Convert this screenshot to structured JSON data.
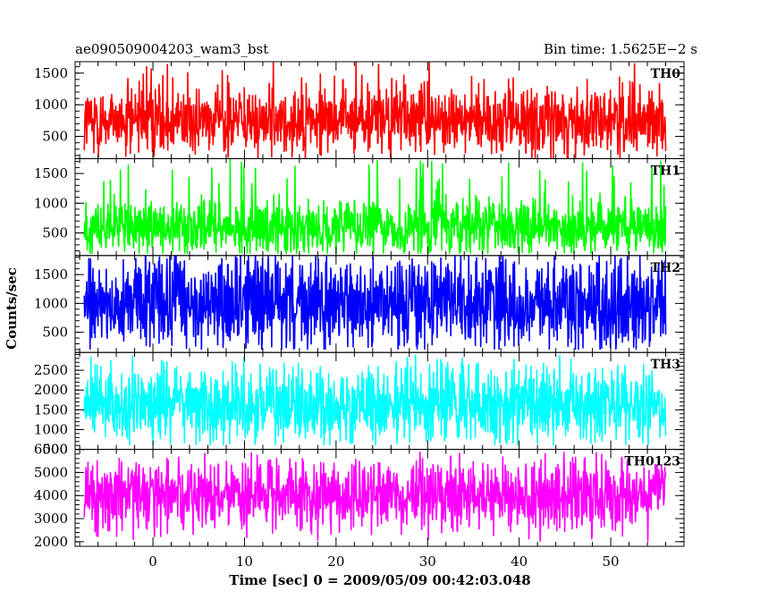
{
  "header": {
    "object_name": "ae090509004203_wam3_bst",
    "bin_time": "Bin time: 1.5625E−2 s"
  },
  "chart_data": {
    "type": "line",
    "xlabel": "Time [sec] 0 = 2009/05/09 00:42:03.048",
    "ylabel": "Counts/sec",
    "xlim": [
      -8.5,
      58
    ],
    "x_data_range": [
      -7.5,
      56
    ],
    "bin_time_s": 0.015625,
    "x_ticks": [
      0,
      10,
      20,
      30,
      40,
      50
    ],
    "grid": false,
    "legend": "none",
    "panels": [
      {
        "name": "TH0",
        "color": "#ff0000",
        "ylim": [
          150,
          1680
        ],
        "yticks": [
          500,
          1000,
          1500
        ],
        "baseline": 760,
        "spread": 260,
        "min": 150,
        "max": 1680
      },
      {
        "name": "TH1",
        "color": "#00ff00",
        "ylim": [
          120,
          1750
        ],
        "yticks": [
          500,
          1000,
          1500
        ],
        "baseline": 600,
        "spread": 230,
        "min": 150,
        "max": 1750
      },
      {
        "name": "TH2",
        "color": "#0000ff",
        "ylim": [
          150,
          1830
        ],
        "yticks": [
          500,
          1000,
          1500
        ],
        "baseline": 990,
        "spread": 380,
        "min": 200,
        "max": 1830
      },
      {
        "name": "TH3",
        "color": "#00ffff",
        "ylim": [
          500,
          2950
        ],
        "yticks": [
          500,
          1000,
          1500,
          2000,
          2500
        ],
        "baseline": 1650,
        "spread": 450,
        "min": 600,
        "max": 2950
      },
      {
        "name": "TH0123",
        "color": "#ff00ff",
        "ylim": [
          1800,
          6000
        ],
        "yticks": [
          2000,
          3000,
          4000,
          5000,
          6000
        ],
        "baseline": 4000,
        "spread": 680,
        "min": 2000,
        "max": 5900
      }
    ]
  }
}
